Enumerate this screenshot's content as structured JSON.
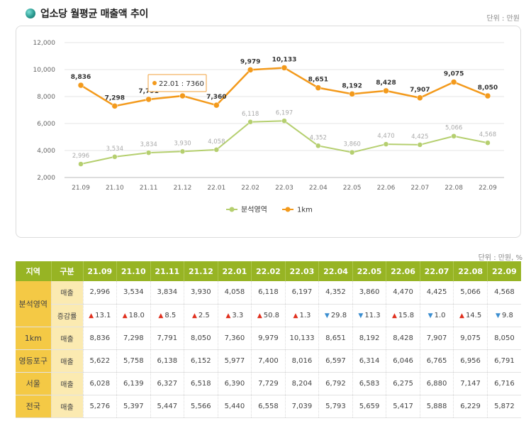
{
  "header": {
    "title": "업소당 월평균 매출액 추이",
    "unit": "단위 : 만원"
  },
  "chart_data": {
    "type": "line",
    "x": [
      "21.09",
      "21.10",
      "21.11",
      "21.12",
      "22.01",
      "22.02",
      "22.03",
      "22.04",
      "22.05",
      "22.06",
      "22.07",
      "22.08",
      "22.09"
    ],
    "ylim": [
      2000,
      12000
    ],
    "yticks": [
      2000,
      4000,
      6000,
      8000,
      10000,
      12000
    ],
    "ytick_labels": [
      "2,000",
      "4,000",
      "6,000",
      "8,000",
      "10,000",
      "12,000"
    ],
    "grid": true,
    "legend": "bottom-center",
    "series": [
      {
        "name": "분석영역",
        "color": "#b5cf6f",
        "values": [
          2996,
          3534,
          3834,
          3930,
          4058,
          6118,
          6197,
          4352,
          3860,
          4470,
          4425,
          5066,
          4568
        ],
        "labels": [
          "2,996",
          "3,534",
          "3,834",
          "3,930",
          "4,058",
          "6,118",
          "6,197",
          "4,352",
          "3,860",
          "4,470",
          "4,425",
          "5,066",
          "4,568"
        ]
      },
      {
        "name": "1km",
        "color": "#f39a1c",
        "values": [
          8836,
          7298,
          7791,
          8050,
          7360,
          9979,
          10133,
          8651,
          8192,
          8428,
          7907,
          9075,
          8050
        ],
        "labels": [
          "8,836",
          "7,298",
          "7,791",
          "8,050",
          "7,360",
          "9,979",
          "10,133",
          "8,651",
          "8,192",
          "8,428",
          "7,907",
          "9,075",
          "8,050"
        ]
      }
    ],
    "tooltip": {
      "text": "22.01 : 7360"
    }
  },
  "table": {
    "unit": "단위 : 만원, %",
    "headers": [
      "지역",
      "구분",
      "21.09",
      "21.10",
      "21.11",
      "21.12",
      "22.01",
      "22.02",
      "22.03",
      "22.04",
      "22.05",
      "22.06",
      "22.07",
      "22.08",
      "22.09"
    ],
    "rows": [
      {
        "region": "분석영역",
        "kind": "매출",
        "cells": [
          "2,996",
          "3,534",
          "3,834",
          "3,930",
          "4,058",
          "6,118",
          "6,197",
          "4,352",
          "3,860",
          "4,470",
          "4,425",
          "5,066",
          "4,568"
        ]
      },
      {
        "region": "",
        "kind": "증감률",
        "cells": [
          "13.1",
          "18.0",
          "8.5",
          "2.5",
          "3.3",
          "50.8",
          "1.3",
          "29.8",
          "11.3",
          "15.8",
          "1.0",
          "14.5",
          "9.8"
        ],
        "dirs": [
          "up",
          "up",
          "up",
          "up",
          "up",
          "up",
          "up",
          "down",
          "down",
          "up",
          "down",
          "up",
          "down"
        ]
      },
      {
        "region": "1km",
        "kind": "매출",
        "cells": [
          "8,836",
          "7,298",
          "7,791",
          "8,050",
          "7,360",
          "9,979",
          "10,133",
          "8,651",
          "8,192",
          "8,428",
          "7,907",
          "9,075",
          "8,050"
        ]
      },
      {
        "region": "영등포구",
        "kind": "매출",
        "cells": [
          "5,622",
          "5,758",
          "6,138",
          "6,152",
          "5,977",
          "7,400",
          "8,016",
          "6,597",
          "6,314",
          "6,046",
          "6,765",
          "6,956",
          "6,791"
        ]
      },
      {
        "region": "서울",
        "kind": "매출",
        "cells": [
          "6,028",
          "6,139",
          "6,327",
          "6,518",
          "6,390",
          "7,729",
          "8,204",
          "6,792",
          "6,583",
          "6,275",
          "6,880",
          "7,147",
          "6,716"
        ]
      },
      {
        "region": "전국",
        "kind": "매출",
        "cells": [
          "5,276",
          "5,397",
          "5,447",
          "5,566",
          "5,440",
          "6,558",
          "7,039",
          "5,793",
          "5,659",
          "5,417",
          "5,888",
          "6,229",
          "5,872"
        ]
      }
    ]
  }
}
